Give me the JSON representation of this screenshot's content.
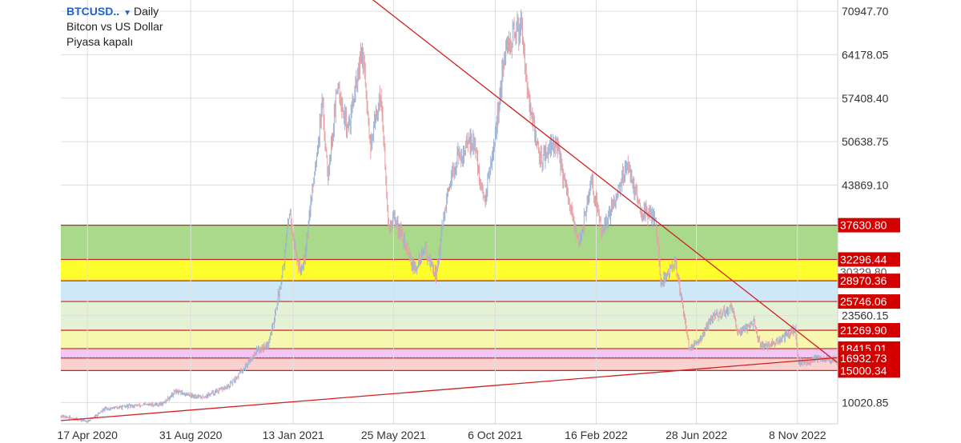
{
  "header": {
    "symbol": "BTCUSD..",
    "timeframe": "Daily",
    "description": "Bitcon vs US Dollar",
    "status": "Piyasa kapalı"
  },
  "chart_data": {
    "type": "candlestick",
    "price_axis": {
      "ticks": [
        "70947.70",
        "64178.05",
        "57408.40",
        "50638.75",
        "43869.10",
        "23560.15",
        "10020.85"
      ],
      "ylim": [
        6700,
        72700
      ]
    },
    "time_axis": {
      "ticks": [
        "17 Apr 2020",
        "31 Aug 2020",
        "13 Jan 2021",
        "25 May 2021",
        "6 Oct 2021",
        "16 Feb 2022",
        "28 Jun 2022",
        "8 Nov 2022"
      ],
      "range": [
        "2020-03-13",
        "2022-12-31"
      ]
    },
    "zones": [
      {
        "from": 32296.44,
        "to": 37630.8,
        "color": "#a9d98b"
      },
      {
        "from": 28970.36,
        "to": 32296.44,
        "color": "#ffff2e"
      },
      {
        "from": 25746.06,
        "to": 28970.36,
        "color": "#cfe8f7"
      },
      {
        "from": 21269.9,
        "to": 25746.06,
        "color": "#e3f2d4"
      },
      {
        "from": 18415.01,
        "to": 21269.9,
        "color": "#f7f7b0"
      },
      {
        "from": 16932.73,
        "to": 18415.01,
        "color": "#f2c8f2"
      },
      {
        "from": 15000.34,
        "to": 16932.73,
        "color": "#f9d1cf"
      }
    ],
    "level_labels": [
      {
        "value": 37630.8,
        "text": "37630.80"
      },
      {
        "value": 32296.44,
        "text": "32296.44"
      },
      {
        "value": 30329.8,
        "text": "30329.80",
        "style": "covered"
      },
      {
        "value": 28970.36,
        "text": "28970.36"
      },
      {
        "value": 25746.06,
        "text": "25746.06"
      },
      {
        "value": 21269.9,
        "text": "21269.90"
      },
      {
        "value": 18415.01,
        "text": "18415.01"
      },
      {
        "value": 16932.73,
        "text": "16932.73"
      },
      {
        "value": 15000.34,
        "text": "15000.34"
      }
    ],
    "current_price": 17000,
    "trendlines": [
      {
        "name": "descending",
        "from": [
          "2021-04-12",
          74200
        ],
        "to": [
          "2022-12-31",
          16200
        ]
      },
      {
        "name": "ascending",
        "from": [
          "2020-03-13",
          7200
        ],
        "to": [
          "2022-12-31",
          17000
        ]
      }
    ],
    "price_path": [
      [
        "2020-03-13",
        7900
      ],
      [
        "2020-04-17",
        7100
      ],
      [
        "2020-05-10",
        9000
      ],
      [
        "2020-06-15",
        9500
      ],
      [
        "2020-07-25",
        9800
      ],
      [
        "2020-08-10",
        11700
      ],
      [
        "2020-09-15",
        10800
      ],
      [
        "2020-10-20",
        12500
      ],
      [
        "2020-11-10",
        15500
      ],
      [
        "2020-11-25",
        18000
      ],
      [
        "2020-12-10",
        19000
      ],
      [
        "2020-12-17",
        22000
      ],
      [
        "2020-12-25",
        27000
      ],
      [
        "2021-01-02",
        33000
      ],
      [
        "2021-01-08",
        40000
      ],
      [
        "2021-01-15",
        34000
      ],
      [
        "2021-01-22",
        30500
      ],
      [
        "2021-01-28",
        33000
      ],
      [
        "2021-02-08",
        44000
      ],
      [
        "2021-02-20",
        56000
      ],
      [
        "2021-02-28",
        46000
      ],
      [
        "2021-03-13",
        60000
      ],
      [
        "2021-03-25",
        52000
      ],
      [
        "2021-04-14",
        64500
      ],
      [
        "2021-04-25",
        50000
      ],
      [
        "2021-05-08",
        58500
      ],
      [
        "2021-05-19",
        37000
      ],
      [
        "2021-05-25",
        39000
      ],
      [
        "2021-06-05",
        36000
      ],
      [
        "2021-06-22",
        30500
      ],
      [
        "2021-07-05",
        34000
      ],
      [
        "2021-07-20",
        29800
      ],
      [
        "2021-08-01",
        40000
      ],
      [
        "2021-08-15",
        47500
      ],
      [
        "2021-09-07",
        51000
      ],
      [
        "2021-09-21",
        41000
      ],
      [
        "2021-10-05",
        51000
      ],
      [
        "2021-10-20",
        65000
      ],
      [
        "2021-11-10",
        69000
      ],
      [
        "2021-11-20",
        56000
      ],
      [
        "2021-12-04",
        48000
      ],
      [
        "2021-12-25",
        50500
      ],
      [
        "2022-01-10",
        41500
      ],
      [
        "2022-01-24",
        34500
      ],
      [
        "2022-02-10",
        44500
      ],
      [
        "2022-02-24",
        36000
      ],
      [
        "2022-03-29",
        47500
      ],
      [
        "2022-04-15",
        40000
      ],
      [
        "2022-05-05",
        39000
      ],
      [
        "2022-05-12",
        28500
      ],
      [
        "2022-05-31",
        31800
      ],
      [
        "2022-06-13",
        23000
      ],
      [
        "2022-06-18",
        18500
      ],
      [
        "2022-07-01",
        19500
      ],
      [
        "2022-07-20",
        23500
      ],
      [
        "2022-08-14",
        24500
      ],
      [
        "2022-08-20",
        21000
      ],
      [
        "2022-09-12",
        22500
      ],
      [
        "2022-09-20",
        18800
      ],
      [
        "2022-10-10",
        19200
      ],
      [
        "2022-10-25",
        20500
      ],
      [
        "2022-11-05",
        21300
      ],
      [
        "2022-11-09",
        16500
      ],
      [
        "2022-11-20",
        16200
      ],
      [
        "2022-12-05",
        17100
      ],
      [
        "2022-12-20",
        16800
      ],
      [
        "2022-12-31",
        16600
      ]
    ]
  },
  "colors": {
    "up": "#9ab3d6",
    "down": "#e7a1a5",
    "trendline": "#d11f1f",
    "level_label_bg": "#d40000",
    "level_label_text": "#ffffff",
    "axis_text": "#333333",
    "grid": "#dedede"
  }
}
